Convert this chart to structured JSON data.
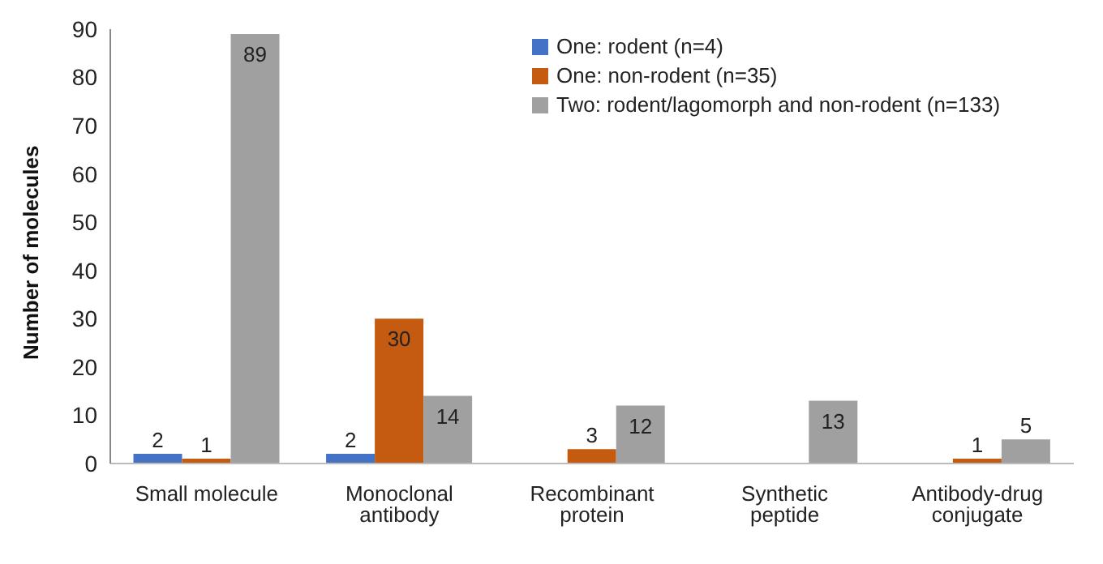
{
  "chart_data": {
    "type": "bar",
    "ylabel": "Number of molecules",
    "categories": [
      "Small molecule",
      "Monoclonal antibody",
      "Recombinant protein",
      "Synthetic peptide",
      "Antibody-drug conjugate"
    ],
    "series": [
      {
        "name": "One: rodent (n=4)",
        "color": "#4472c4",
        "values": [
          2,
          2,
          null,
          null,
          null
        ]
      },
      {
        "name": "One: non-rodent (n=35)",
        "color": "#c55a11",
        "values": [
          1,
          30,
          3,
          null,
          1
        ]
      },
      {
        "name": "Two: rodent/lagomorph and non-rodent (n=133)",
        "color": "#a0a0a0",
        "values": [
          89,
          14,
          12,
          13,
          5
        ]
      }
    ],
    "ylim": [
      0,
      90
    ],
    "yticks": [
      0,
      10,
      20,
      30,
      40,
      50,
      60,
      70,
      80,
      90
    ],
    "grid": false,
    "legend": "top right",
    "data_labels": true
  }
}
